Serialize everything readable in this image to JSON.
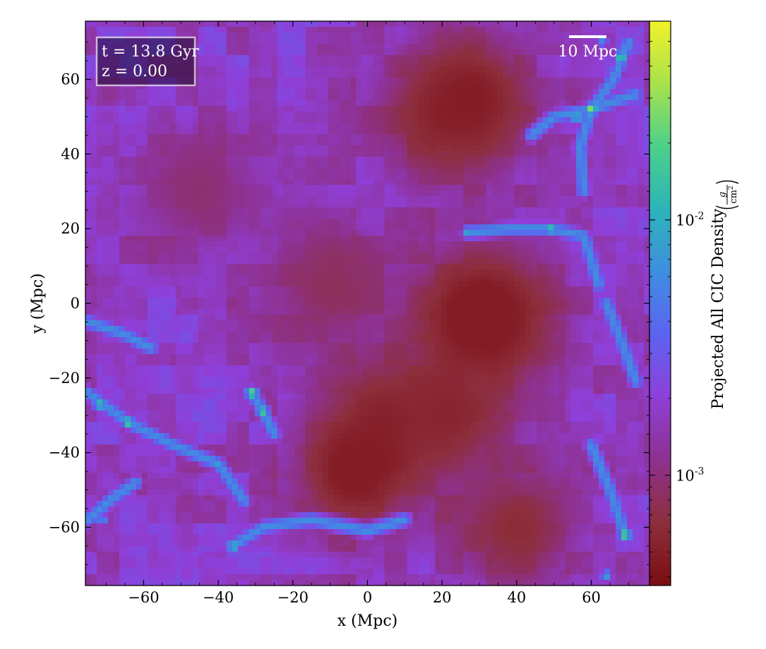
{
  "chart_data": {
    "type": "heatmap",
    "title": "",
    "xlabel": "x  (Mpc)",
    "ylabel": "y  (Mpc)",
    "xlim": [
      -75.6,
      75.6
    ],
    "ylim": [
      -75.6,
      75.6
    ],
    "x_ticks": [
      -60,
      -40,
      -20,
      0,
      20,
      40,
      60
    ],
    "y_ticks": [
      -60,
      -40,
      -20,
      0,
      20,
      40,
      60
    ],
    "x_tick_labels": [
      "−60",
      "−40",
      "−20",
      "0",
      "20",
      "40",
      "60"
    ],
    "y_tick_labels": [
      "−60",
      "−40",
      "−20",
      "0",
      "20",
      "40",
      "60"
    ],
    "grid": false,
    "annotations": {
      "time": "t = 13.8 Gyr",
      "redshift": "z = 0.00",
      "scale_bar_label": "10 Mpc",
      "scale_bar_length_mpc": 10
    },
    "colorbar": {
      "label": "Projected All CIC Density",
      "unit_numerator": "g",
      "unit_denominator": "cm",
      "unit_denominator_exponent": "2",
      "scale": "log",
      "range": [
        0.00037,
        0.06
      ],
      "tick_values": [
        0.001,
        0.01
      ],
      "tick_base": "10",
      "tick_exponents": [
        "-3",
        "-2"
      ],
      "colormap": "viridis overlaid with translucent magenta",
      "colors": [
        "#7a0d10",
        "#8d2e3c",
        "#8e318e",
        "#8f3fd8",
        "#5c63f0",
        "#3f8ee0",
        "#2cb4b8",
        "#4cd08a",
        "#a8e24c",
        "#f0f22a"
      ]
    },
    "dense_regions": [
      {
        "x": 60,
        "y": 52,
        "level": 0.85
      },
      {
        "x": 56,
        "y": 50,
        "level": 0.7
      },
      {
        "x": 68,
        "y": 66,
        "level": 0.75
      },
      {
        "x": 63,
        "y": 70,
        "level": 0.55
      },
      {
        "x": 49,
        "y": 20,
        "level": 0.7
      },
      {
        "x": 27,
        "y": 19,
        "level": 0.65
      },
      {
        "x": 62,
        "y": 5,
        "level": 0.55
      },
      {
        "x": 72,
        "y": -21,
        "level": 0.5
      },
      {
        "x": -31,
        "y": -24,
        "level": 0.8
      },
      {
        "x": -28,
        "y": -29,
        "level": 0.75
      },
      {
        "x": -72,
        "y": -27,
        "level": 0.7
      },
      {
        "x": -64,
        "y": -32,
        "level": 0.75
      },
      {
        "x": -40,
        "y": -43,
        "level": 0.6
      },
      {
        "x": -36,
        "y": -65,
        "level": 0.7
      },
      {
        "x": -71,
        "y": -58,
        "level": 0.55
      },
      {
        "x": 69,
        "y": -62,
        "level": 0.8
      },
      {
        "x": 64,
        "y": -73,
        "level": 0.6
      }
    ],
    "filaments": [
      [
        [
          -75,
          -24
        ],
        [
          -64,
          -32
        ],
        [
          -52,
          -38
        ],
        [
          -40,
          -43
        ],
        [
          -33,
          -53
        ]
      ],
      [
        [
          -31,
          -24
        ],
        [
          -28,
          -29
        ],
        [
          -25,
          -35
        ]
      ],
      [
        [
          -75,
          -58
        ],
        [
          -68,
          -52
        ],
        [
          -62,
          -48
        ]
      ],
      [
        [
          -36,
          -65
        ],
        [
          -28,
          -60
        ],
        [
          -15,
          -58
        ],
        [
          0,
          -61
        ],
        [
          10,
          -58
        ]
      ],
      [
        [
          27,
          19
        ],
        [
          38,
          20
        ],
        [
          49,
          20
        ],
        [
          58,
          18
        ],
        [
          62,
          5
        ]
      ],
      [
        [
          58,
          30
        ],
        [
          57,
          42
        ],
        [
          60,
          52
        ],
        [
          66,
          60
        ],
        [
          70,
          70
        ]
      ],
      [
        [
          44,
          45
        ],
        [
          50,
          50
        ],
        [
          60,
          52
        ],
        [
          72,
          56
        ]
      ],
      [
        [
          72,
          -21
        ],
        [
          68,
          -10
        ],
        [
          64,
          0
        ]
      ],
      [
        [
          69,
          -62
        ],
        [
          65,
          -50
        ],
        [
          60,
          -38
        ]
      ],
      [
        [
          -75,
          -5
        ],
        [
          -66,
          -8
        ],
        [
          -58,
          -12
        ]
      ]
    ],
    "voids": [
      {
        "x": 5,
        "y": -30,
        "level": 0.1
      },
      {
        "x": 22,
        "y": -30,
        "level": 0.08
      },
      {
        "x": -10,
        "y": 5,
        "level": 0.15
      },
      {
        "x": 35,
        "y": -5,
        "level": 0.12
      },
      {
        "x": 20,
        "y": 50,
        "level": 0.1
      },
      {
        "x": -45,
        "y": 30,
        "level": 0.18
      },
      {
        "x": 40,
        "y": -60,
        "level": 0.1
      },
      {
        "x": 28,
        "y": 55,
        "level": 0.05
      },
      {
        "x": 30,
        "y": -3,
        "level": 0.02
      },
      {
        "x": -3,
        "y": -45,
        "level": 0.03
      }
    ]
  }
}
